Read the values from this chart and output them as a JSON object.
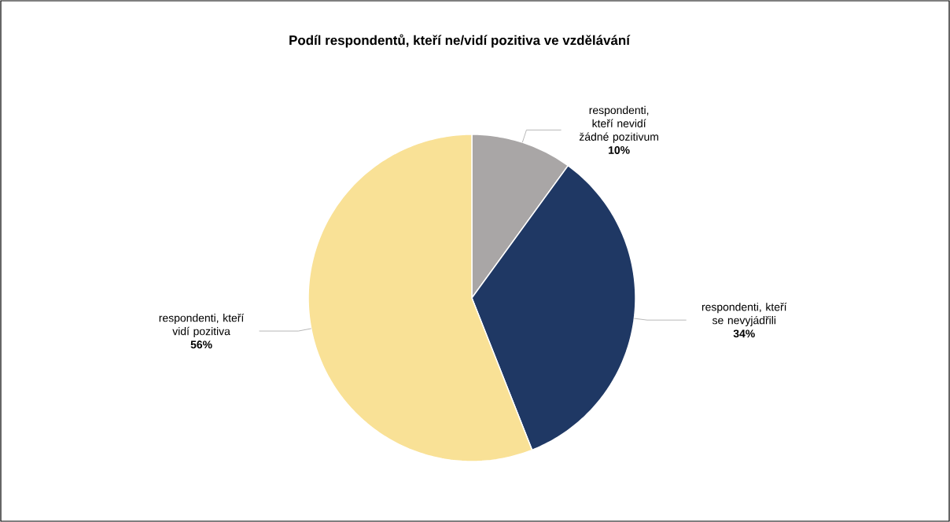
{
  "chart_data": {
    "type": "pie",
    "title": "Podíl respondentů, kteří ne/vidí pozitiva ve vzdělávání",
    "categories": [
      "respondenti, kteří nevidí žádné pozitivum",
      "respondenti, kteří se nevyjádřili",
      "respondenti, kteří vidí pozitiva"
    ],
    "values": [
      10,
      34,
      56
    ],
    "value_labels": [
      "10%",
      "34%",
      "56%"
    ],
    "colors": [
      "#a9a6a6",
      "#1f3864",
      "#f9e196"
    ]
  }
}
